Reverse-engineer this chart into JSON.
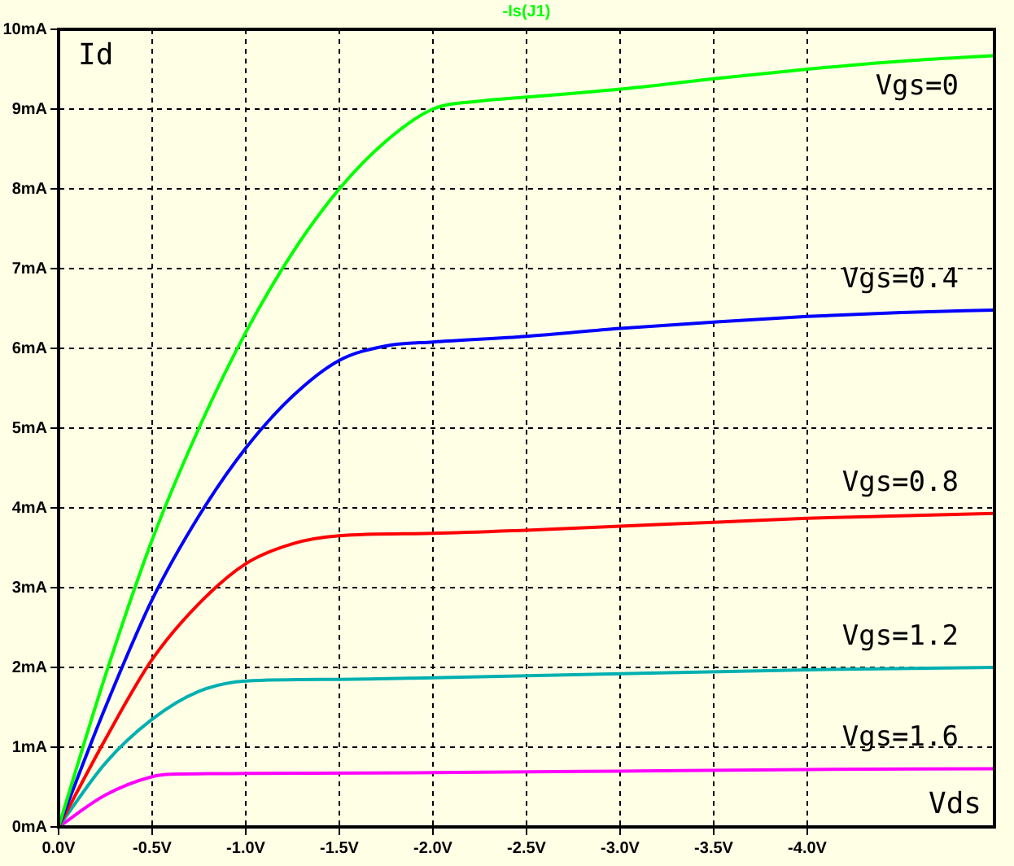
{
  "chart_data": {
    "type": "line",
    "title": "-Is(J1)",
    "xlabel": "Vds",
    "ylabel": "Id",
    "xlim": [
      0,
      -5
    ],
    "ylim": [
      0,
      10
    ],
    "xticks": [
      {
        "value": 0,
        "label": "0.0V"
      },
      {
        "value": -0.5,
        "label": "-0.5V"
      },
      {
        "value": -1,
        "label": "-1.0V"
      },
      {
        "value": -1.5,
        "label": "-1.5V"
      },
      {
        "value": -2,
        "label": "-2.0V"
      },
      {
        "value": -2.5,
        "label": "-2.5V"
      },
      {
        "value": -3,
        "label": "-3.0V"
      },
      {
        "value": -3.5,
        "label": "-3.5V"
      },
      {
        "value": -4,
        "label": "-4.0V"
      }
    ],
    "yticks": [
      {
        "value": 0,
        "label": "0mA"
      },
      {
        "value": 1,
        "label": "1mA"
      },
      {
        "value": 2,
        "label": "2mA"
      },
      {
        "value": 3,
        "label": "3mA"
      },
      {
        "value": 4,
        "label": "4mA"
      },
      {
        "value": 5,
        "label": "5mA"
      },
      {
        "value": 6,
        "label": "6mA"
      },
      {
        "value": 7,
        "label": "7mA"
      },
      {
        "value": 8,
        "label": "8mA"
      },
      {
        "value": 9,
        "label": "9mA"
      },
      {
        "value": 10,
        "label": "10mA"
      }
    ],
    "grid": true,
    "marker": "none",
    "line_style": "solid",
    "series": [
      {
        "name": "Vgs=0",
        "color": "#00ff00",
        "x": [
          0,
          -0.25,
          -0.5,
          -0.75,
          -1,
          -1.25,
          -1.5,
          -1.75,
          -2,
          -2.25,
          -2.5,
          -3,
          -3.5,
          -4,
          -4.5,
          -5
        ],
        "values": [
          0,
          1.9,
          3.6,
          5.0,
          6.2,
          7.2,
          8.0,
          8.6,
          9.0,
          9.1,
          9.15,
          9.25,
          9.38,
          9.5,
          9.6,
          9.67
        ]
      },
      {
        "name": "Vgs=0.4",
        "color": "#0000ff",
        "x": [
          0,
          -0.25,
          -0.5,
          -0.75,
          -1,
          -1.25,
          -1.5,
          -1.75,
          -2,
          -2.5,
          -3,
          -3.5,
          -4,
          -4.5,
          -5
        ],
        "values": [
          0,
          1.5,
          2.85,
          3.9,
          4.75,
          5.4,
          5.85,
          6.03,
          6.08,
          6.15,
          6.25,
          6.33,
          6.4,
          6.45,
          6.48
        ]
      },
      {
        "name": "Vgs=0.8",
        "color": "#ff0000",
        "x": [
          0,
          -0.25,
          -0.5,
          -0.75,
          -1,
          -1.25,
          -1.5,
          -2,
          -2.5,
          -3,
          -3.5,
          -4,
          -4.5,
          -5
        ],
        "values": [
          0,
          1.1,
          2.1,
          2.8,
          3.3,
          3.55,
          3.65,
          3.68,
          3.72,
          3.77,
          3.82,
          3.87,
          3.9,
          3.93
        ]
      },
      {
        "name": "Vgs=1.2",
        "color": "#00b0b0",
        "x": [
          0,
          -0.25,
          -0.5,
          -0.75,
          -1,
          -1.5,
          -2,
          -3,
          -4,
          -5
        ],
        "values": [
          0,
          0.8,
          1.35,
          1.7,
          1.83,
          1.85,
          1.87,
          1.92,
          1.97,
          2.0
        ]
      },
      {
        "name": "Vgs=1.6",
        "color": "#ff00ff",
        "x": [
          0,
          -0.25,
          -0.5,
          -0.6,
          -1,
          -2,
          -3,
          -4,
          -5
        ],
        "values": [
          0,
          0.4,
          0.63,
          0.66,
          0.67,
          0.68,
          0.7,
          0.72,
          0.73
        ]
      }
    ]
  }
}
